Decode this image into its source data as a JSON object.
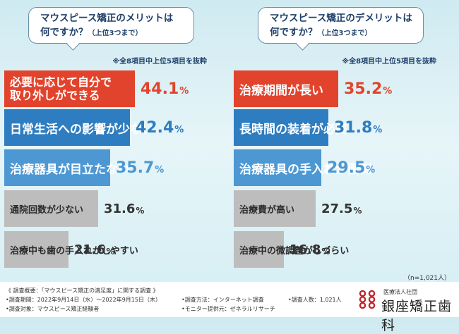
{
  "chart_data": [
    {
      "type": "bar",
      "title_line1": "マウスピース矯正のメリットは",
      "title_line2": "何ですか？",
      "subtitle": "（上位3つまで）",
      "note": "※全8項目中上位5項目を抜粋",
      "unit": "%",
      "categories": [
        "必要に応じて自分で取り外しができる",
        "日常生活への影響が少ない",
        "治療器具が目立たない",
        "通院回数が少ない",
        "治療中も歯の手入れがしやすい"
      ],
      "category_lines": [
        [
          "必要に応じて自分で",
          "取り外しができる"
        ]
      ],
      "values": [
        44.1,
        42.4,
        35.7,
        31.6,
        21.6
      ],
      "value_labels": [
        [
          "44.1",
          "%"
        ],
        [
          "42.4",
          "%"
        ],
        [
          "35.7",
          "%"
        ],
        [
          "31.6",
          "%"
        ],
        [
          "21.6",
          "%"
        ]
      ]
    },
    {
      "type": "bar",
      "title_line1": "マウスピース矯正のデメリットは",
      "title_line2": "何ですか？",
      "subtitle": "（上位3つまで）",
      "note": "※全8項目中上位5項目を抜粋",
      "unit": "%",
      "categories": [
        "治療期間が長い",
        "長時間の装着が必要",
        "治療器具の手入れが面倒",
        "治療費が高い",
        "治療中の微調整がしづらい"
      ],
      "values": [
        35.2,
        31.8,
        29.5,
        27.5,
        16.8
      ],
      "value_labels": [
        [
          "35.2",
          "%"
        ],
        [
          "31.8",
          "%"
        ],
        [
          "29.5",
          "%"
        ],
        [
          "27.5",
          "%"
        ],
        [
          "16.8",
          "%"
        ]
      ]
    }
  ],
  "sample_size": "（n=1,021人）",
  "survey": {
    "summary": "《 調査概要：「マウスピース矯正の満足度」に関する調査 》",
    "period": "•調査期間：2022年9月14日（水）～2022年9月15日（木）",
    "method": "•調査方法：インターネット調査",
    "respondents": "•調査人数：1,021人",
    "target": "•調査対象：マウスピース矯正経験者",
    "provider": "•モニター提供元：ゼネラルリサーチ"
  },
  "logo": {
    "small_text": "医療法人社団",
    "name": "銀座矯正歯科",
    "mark_color": "#c0282d"
  }
}
